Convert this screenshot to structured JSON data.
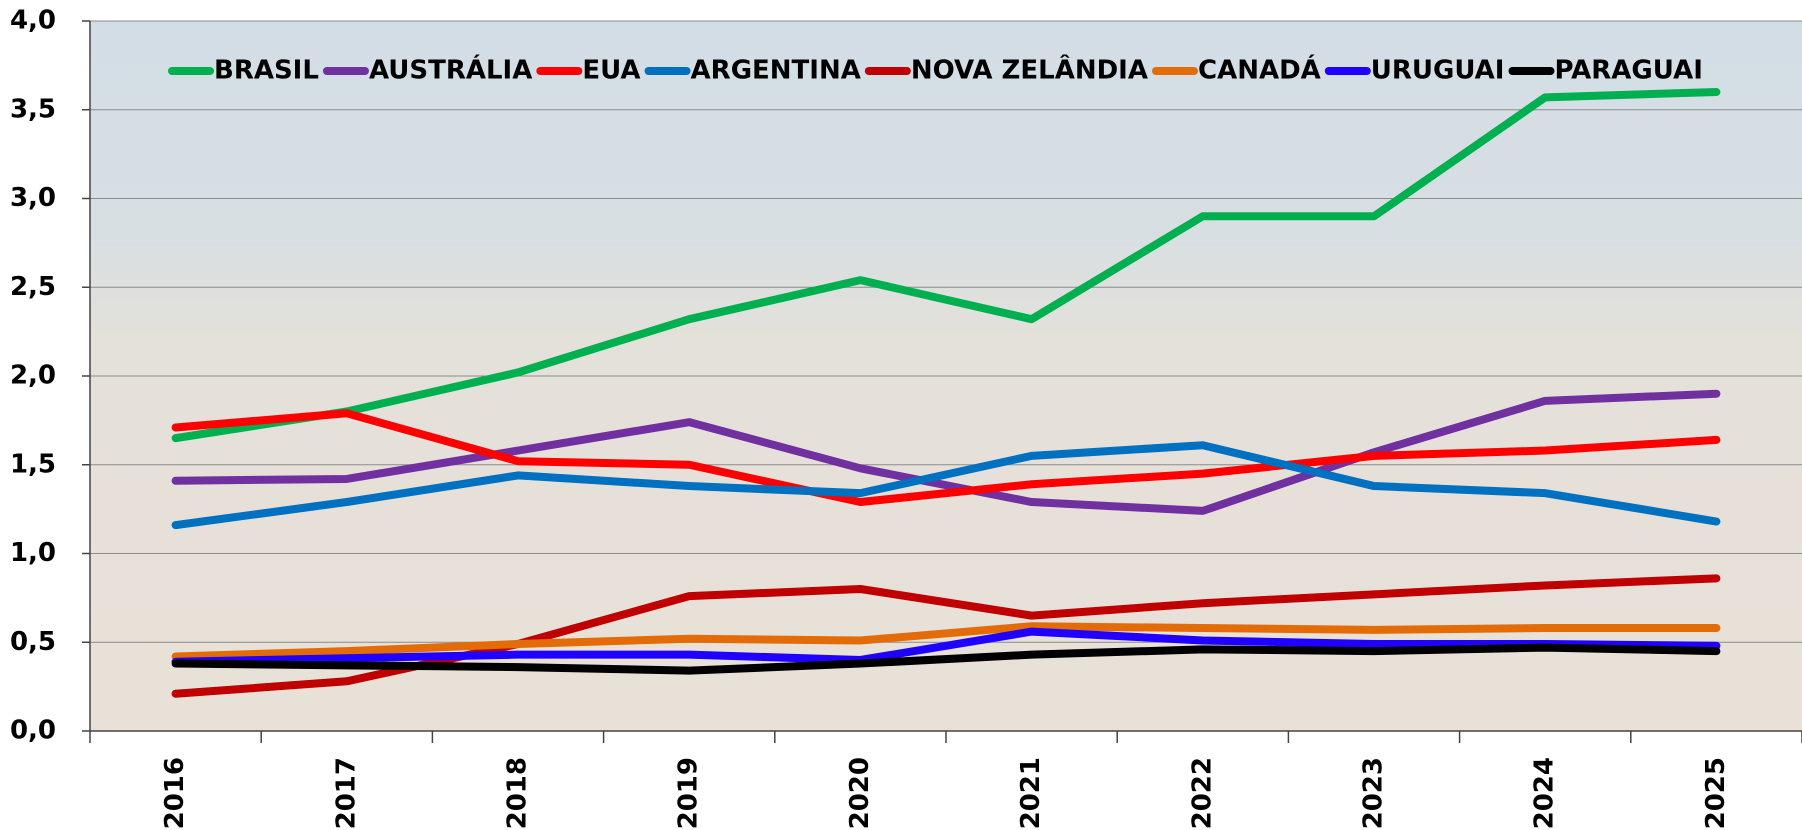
{
  "chart_data": {
    "type": "line",
    "categories": [
      "2016",
      "2017",
      "2018",
      "2019",
      "2020",
      "2021",
      "2022",
      "2023",
      "2024",
      "2025"
    ],
    "series": [
      {
        "name": "BRASIL",
        "color": "#00b050",
        "values": [
          1.65,
          1.8,
          2.02,
          2.32,
          2.54,
          2.32,
          2.9,
          2.9,
          3.57,
          3.6
        ]
      },
      {
        "name": "AUSTRÁLIA",
        "color": "#7030a0",
        "values": [
          1.41,
          1.42,
          1.58,
          1.74,
          1.48,
          1.29,
          1.24,
          1.57,
          1.86,
          1.9
        ]
      },
      {
        "name": "EUA",
        "color": "#ff0000",
        "values": [
          1.71,
          1.79,
          1.52,
          1.5,
          1.29,
          1.39,
          1.45,
          1.55,
          1.58,
          1.64
        ]
      },
      {
        "name": "ARGENTINA",
        "color": "#0070c0",
        "values": [
          1.16,
          1.29,
          1.44,
          1.38,
          1.34,
          1.55,
          1.61,
          1.38,
          1.34,
          1.18
        ]
      },
      {
        "name": "NOVA ZELÂNDIA",
        "color": "#c00000",
        "values": [
          0.21,
          0.28,
          0.49,
          0.76,
          0.8,
          0.65,
          0.72,
          0.77,
          0.82,
          0.86
        ]
      },
      {
        "name": "CANADÁ",
        "color": "#e36c09",
        "values": [
          0.42,
          0.45,
          0.49,
          0.52,
          0.51,
          0.59,
          0.58,
          0.57,
          0.58,
          0.58
        ]
      },
      {
        "name": "URUGUAI",
        "color": "#2000ff",
        "values": [
          0.39,
          0.41,
          0.43,
          0.43,
          0.4,
          0.56,
          0.51,
          0.49,
          0.49,
          0.48
        ]
      },
      {
        "name": "PARAGUAI",
        "color": "#000000",
        "values": [
          0.38,
          0.37,
          0.36,
          0.34,
          0.38,
          0.43,
          0.46,
          0.45,
          0.47,
          0.45
        ]
      }
    ],
    "ylim": [
      0,
      4
    ],
    "yticks": [
      {
        "value": 0,
        "label": "0,0"
      },
      {
        "value": 0.5,
        "label": "0,5"
      },
      {
        "value": 1,
        "label": "1,0"
      },
      {
        "value": 1.5,
        "label": "1,5"
      },
      {
        "value": 2,
        "label": "2,0"
      },
      {
        "value": 2.5,
        "label": "2,5"
      },
      {
        "value": 3,
        "label": "3,0"
      },
      {
        "value": 3.5,
        "label": "3,5"
      },
      {
        "value": 4,
        "label": "4,0"
      }
    ],
    "grid": true,
    "legend": "top"
  }
}
